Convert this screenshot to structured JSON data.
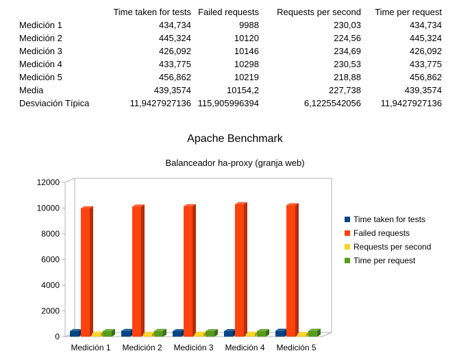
{
  "table": {
    "headers": [
      "",
      "Time taken for tests",
      "Failed requests",
      "Requests per second",
      "Time per request"
    ],
    "rows": [
      [
        "Medición 1",
        "434,734",
        "9988",
        "230,03",
        "434,734"
      ],
      [
        "Medición 2",
        "445,324",
        "10120",
        "224,56",
        "445,324"
      ],
      [
        "Medición 3",
        "426,092",
        "10146",
        "234,69",
        "426,092"
      ],
      [
        "Medición 4",
        "433,775",
        "10298",
        "230,53",
        "433,775"
      ],
      [
        "Medición 5",
        "456,862",
        "10219",
        "218,88",
        "456,862"
      ],
      [
        "Media",
        "439,3574",
        "10154,2",
        "227,738",
        "439,3574"
      ],
      [
        "Desviación Típica",
        "11,9427927136",
        "115,905996394",
        "6,1225542056",
        "11,9427927136"
      ]
    ]
  },
  "chart_data": {
    "type": "bar",
    "title": "Apache Benchmark",
    "subtitle": "Balanceador ha-proxy (granja web)",
    "categories": [
      "Medición 1",
      "Medición 2",
      "Medición 3",
      "Medición 4",
      "Medición 5"
    ],
    "series": [
      {
        "name": "Time taken for tests",
        "color": "#004586",
        "values": [
          434.734,
          445.324,
          426.092,
          433.775,
          456.862
        ]
      },
      {
        "name": "Failed requests",
        "color": "#ff420e",
        "values": [
          9988,
          10120,
          10146,
          10298,
          10219
        ]
      },
      {
        "name": "Requests per second",
        "color": "#ffd320",
        "values": [
          230.03,
          224.56,
          234.69,
          230.53,
          218.88
        ]
      },
      {
        "name": "Time per request",
        "color": "#579d1c",
        "values": [
          434.734,
          445.324,
          426.092,
          433.775,
          456.862
        ]
      }
    ],
    "yticks": [
      0,
      2000,
      4000,
      6000,
      8000,
      10000,
      12000
    ],
    "ylim": [
      0,
      12000
    ],
    "grid": false,
    "style": "3d",
    "legend": "right"
  }
}
